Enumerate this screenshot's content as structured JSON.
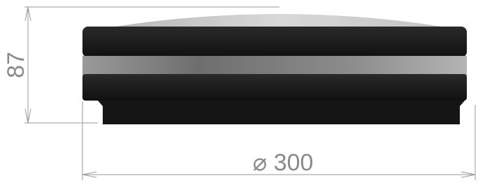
{
  "dimensions": {
    "height": "87",
    "diameter": "⌀ 300"
  }
}
